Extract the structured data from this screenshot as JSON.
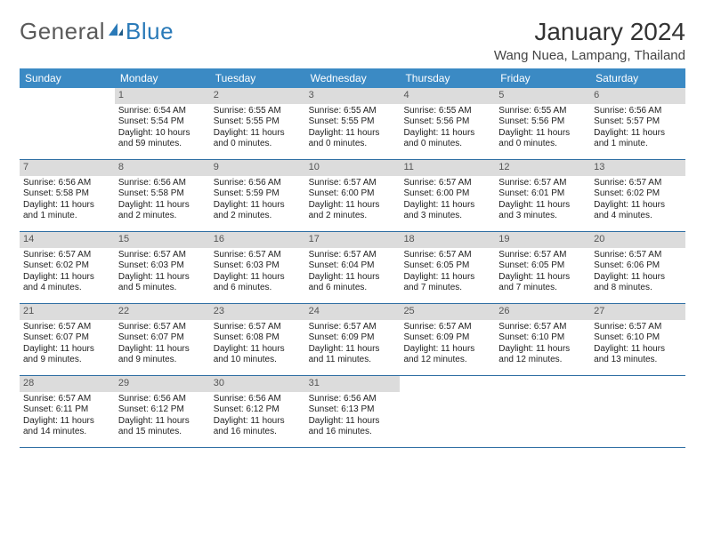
{
  "logo": {
    "text1": "General",
    "text2": "Blue"
  },
  "title": "January 2024",
  "subtitle": "Wang Nuea, Lampang, Thailand",
  "colors": {
    "header_bg": "#3b8ac4",
    "header_text": "#ffffff",
    "daynum_bg": "#dcdcdc",
    "daynum_text": "#555555",
    "rule": "#2f6fa3",
    "body_bg": "#ffffff",
    "body_text": "#222222",
    "logo_gray": "#5a5a5a",
    "logo_blue": "#2a7ab8"
  },
  "day_names": [
    "Sunday",
    "Monday",
    "Tuesday",
    "Wednesday",
    "Thursday",
    "Friday",
    "Saturday"
  ],
  "weeks": [
    [
      {
        "n": "",
        "l": [
          "",
          "",
          ""
        ]
      },
      {
        "n": "1",
        "l": [
          "Sunrise: 6:54 AM",
          "Sunset: 5:54 PM",
          "Daylight: 10 hours and 59 minutes."
        ]
      },
      {
        "n": "2",
        "l": [
          "Sunrise: 6:55 AM",
          "Sunset: 5:55 PM",
          "Daylight: 11 hours and 0 minutes."
        ]
      },
      {
        "n": "3",
        "l": [
          "Sunrise: 6:55 AM",
          "Sunset: 5:55 PM",
          "Daylight: 11 hours and 0 minutes."
        ]
      },
      {
        "n": "4",
        "l": [
          "Sunrise: 6:55 AM",
          "Sunset: 5:56 PM",
          "Daylight: 11 hours and 0 minutes."
        ]
      },
      {
        "n": "5",
        "l": [
          "Sunrise: 6:55 AM",
          "Sunset: 5:56 PM",
          "Daylight: 11 hours and 0 minutes."
        ]
      },
      {
        "n": "6",
        "l": [
          "Sunrise: 6:56 AM",
          "Sunset: 5:57 PM",
          "Daylight: 11 hours and 1 minute."
        ]
      }
    ],
    [
      {
        "n": "7",
        "l": [
          "Sunrise: 6:56 AM",
          "Sunset: 5:58 PM",
          "Daylight: 11 hours and 1 minute."
        ]
      },
      {
        "n": "8",
        "l": [
          "Sunrise: 6:56 AM",
          "Sunset: 5:58 PM",
          "Daylight: 11 hours and 2 minutes."
        ]
      },
      {
        "n": "9",
        "l": [
          "Sunrise: 6:56 AM",
          "Sunset: 5:59 PM",
          "Daylight: 11 hours and 2 minutes."
        ]
      },
      {
        "n": "10",
        "l": [
          "Sunrise: 6:57 AM",
          "Sunset: 6:00 PM",
          "Daylight: 11 hours and 2 minutes."
        ]
      },
      {
        "n": "11",
        "l": [
          "Sunrise: 6:57 AM",
          "Sunset: 6:00 PM",
          "Daylight: 11 hours and 3 minutes."
        ]
      },
      {
        "n": "12",
        "l": [
          "Sunrise: 6:57 AM",
          "Sunset: 6:01 PM",
          "Daylight: 11 hours and 3 minutes."
        ]
      },
      {
        "n": "13",
        "l": [
          "Sunrise: 6:57 AM",
          "Sunset: 6:02 PM",
          "Daylight: 11 hours and 4 minutes."
        ]
      }
    ],
    [
      {
        "n": "14",
        "l": [
          "Sunrise: 6:57 AM",
          "Sunset: 6:02 PM",
          "Daylight: 11 hours and 4 minutes."
        ]
      },
      {
        "n": "15",
        "l": [
          "Sunrise: 6:57 AM",
          "Sunset: 6:03 PM",
          "Daylight: 11 hours and 5 minutes."
        ]
      },
      {
        "n": "16",
        "l": [
          "Sunrise: 6:57 AM",
          "Sunset: 6:03 PM",
          "Daylight: 11 hours and 6 minutes."
        ]
      },
      {
        "n": "17",
        "l": [
          "Sunrise: 6:57 AM",
          "Sunset: 6:04 PM",
          "Daylight: 11 hours and 6 minutes."
        ]
      },
      {
        "n": "18",
        "l": [
          "Sunrise: 6:57 AM",
          "Sunset: 6:05 PM",
          "Daylight: 11 hours and 7 minutes."
        ]
      },
      {
        "n": "19",
        "l": [
          "Sunrise: 6:57 AM",
          "Sunset: 6:05 PM",
          "Daylight: 11 hours and 7 minutes."
        ]
      },
      {
        "n": "20",
        "l": [
          "Sunrise: 6:57 AM",
          "Sunset: 6:06 PM",
          "Daylight: 11 hours and 8 minutes."
        ]
      }
    ],
    [
      {
        "n": "21",
        "l": [
          "Sunrise: 6:57 AM",
          "Sunset: 6:07 PM",
          "Daylight: 11 hours and 9 minutes."
        ]
      },
      {
        "n": "22",
        "l": [
          "Sunrise: 6:57 AM",
          "Sunset: 6:07 PM",
          "Daylight: 11 hours and 9 minutes."
        ]
      },
      {
        "n": "23",
        "l": [
          "Sunrise: 6:57 AM",
          "Sunset: 6:08 PM",
          "Daylight: 11 hours and 10 minutes."
        ]
      },
      {
        "n": "24",
        "l": [
          "Sunrise: 6:57 AM",
          "Sunset: 6:09 PM",
          "Daylight: 11 hours and 11 minutes."
        ]
      },
      {
        "n": "25",
        "l": [
          "Sunrise: 6:57 AM",
          "Sunset: 6:09 PM",
          "Daylight: 11 hours and 12 minutes."
        ]
      },
      {
        "n": "26",
        "l": [
          "Sunrise: 6:57 AM",
          "Sunset: 6:10 PM",
          "Daylight: 11 hours and 12 minutes."
        ]
      },
      {
        "n": "27",
        "l": [
          "Sunrise: 6:57 AM",
          "Sunset: 6:10 PM",
          "Daylight: 11 hours and 13 minutes."
        ]
      }
    ],
    [
      {
        "n": "28",
        "l": [
          "Sunrise: 6:57 AM",
          "Sunset: 6:11 PM",
          "Daylight: 11 hours and 14 minutes."
        ]
      },
      {
        "n": "29",
        "l": [
          "Sunrise: 6:56 AM",
          "Sunset: 6:12 PM",
          "Daylight: 11 hours and 15 minutes."
        ]
      },
      {
        "n": "30",
        "l": [
          "Sunrise: 6:56 AM",
          "Sunset: 6:12 PM",
          "Daylight: 11 hours and 16 minutes."
        ]
      },
      {
        "n": "31",
        "l": [
          "Sunrise: 6:56 AM",
          "Sunset: 6:13 PM",
          "Daylight: 11 hours and 16 minutes."
        ]
      },
      {
        "n": "",
        "l": [
          "",
          "",
          ""
        ]
      },
      {
        "n": "",
        "l": [
          "",
          "",
          ""
        ]
      },
      {
        "n": "",
        "l": [
          "",
          "",
          ""
        ]
      }
    ]
  ]
}
